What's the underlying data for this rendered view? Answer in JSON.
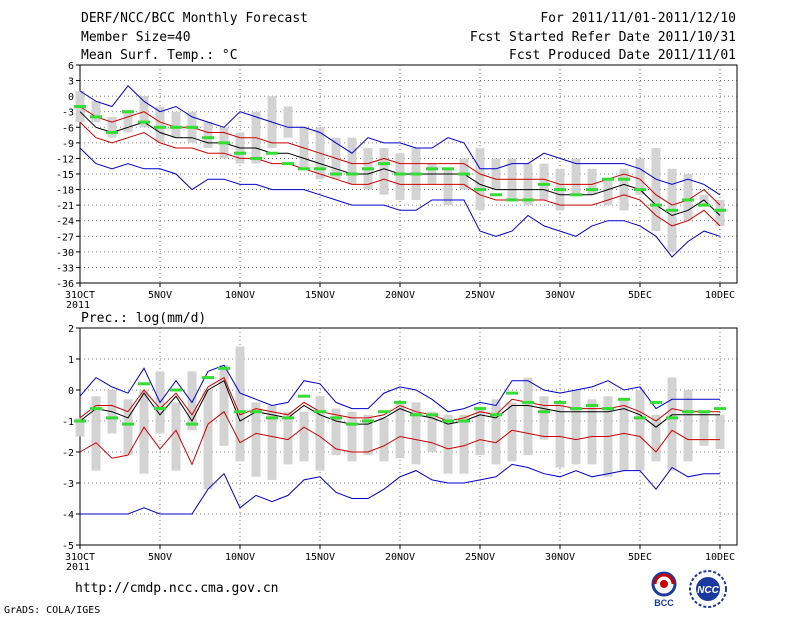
{
  "header": {
    "title": "DERF/NCC/BCC Monthly Forecast",
    "member_size": "Member Size=40",
    "period": "For 2011/11/01-2011/12/10",
    "started": "Fcst Started Refer Date 2011/10/31",
    "produced": "Fcst Produced Date 2011/11/01"
  },
  "footer": {
    "url": "http://cmdp.ncc.cma.gov.cn",
    "grads": "GrADS: COLA/IGES",
    "logo_bcc": "BCC",
    "logo_ncc": "NCC"
  },
  "colors": {
    "ensemble_mean": "#000000",
    "inner_band": "#cc0000",
    "outer_band": "#0000cc",
    "box": "#d3d3d3",
    "marker": "#33dd33",
    "grid": "#555555"
  },
  "chart_data": [
    {
      "type": "line",
      "title": "Mean Surf. Temp.: °C",
      "xlabel": "",
      "ylabel": "",
      "x_tick_labels": [
        "31OCT",
        "5NOV",
        "10NOV",
        "15NOV",
        "20NOV",
        "25NOV",
        "30NOV",
        "5DEC",
        "10DEC"
      ],
      "x_year_label": "2011",
      "ylim": [
        -36,
        6
      ],
      "y_ticks": [
        6,
        3,
        0,
        -3,
        -6,
        -9,
        -12,
        -15,
        -18,
        -21,
        -24,
        -27,
        -30,
        -33,
        -36
      ],
      "box_bottoms": [
        -5,
        -5,
        -8,
        -7,
        -6,
        -9,
        -8,
        -9,
        -10,
        -12,
        -13,
        -13,
        -10,
        -8,
        -14,
        -16,
        -16,
        -17,
        -18,
        -19,
        -20,
        -20,
        -17,
        -21,
        -18,
        -22,
        -18,
        -20,
        -21,
        -20,
        -22,
        -19,
        -19,
        -21,
        -22,
        -19,
        -26,
        -30,
        -24,
        -21,
        -25
      ],
      "box_tops": [
        1,
        -1,
        -4,
        -3,
        0,
        -2,
        -3,
        -3,
        -5,
        -6,
        -7,
        -3,
        0,
        -2,
        -6,
        -6,
        -8,
        -8,
        -10,
        -10,
        -11,
        -10,
        -13,
        -14,
        -12,
        -10,
        -12,
        -12,
        -13,
        -13,
        -14,
        -12,
        -14,
        -16,
        -14,
        -12,
        -10,
        -14,
        -15,
        -19,
        -20
      ],
      "markers": [
        -2,
        -4,
        -7,
        -3,
        -5,
        -6,
        -6,
        -6,
        -8,
        -9,
        -11,
        -12,
        -11,
        -13,
        -14,
        -14,
        -15,
        -15,
        -14,
        -13,
        -15,
        -15,
        -14,
        -14,
        -15,
        -18,
        -19,
        -20,
        -20,
        -17,
        -18,
        -19,
        -18,
        -16,
        -16,
        -18,
        -21,
        -22,
        -20,
        -21,
        -22
      ],
      "series": [
        {
          "name": "ensemble mean",
          "values": [
            -3,
            -6,
            -7,
            -6,
            -5,
            -7,
            -8,
            -8,
            -9,
            -9,
            -10,
            -10,
            -11,
            -11,
            -12,
            -13,
            -14,
            -15,
            -15,
            -14,
            -15,
            -15,
            -15,
            -15,
            -15,
            -17,
            -18,
            -18,
            -18,
            -18,
            -19,
            -19,
            -19,
            -18,
            -17,
            -18,
            -21,
            -23,
            -22,
            -20,
            -23
          ]
        },
        {
          "name": "upper inner band",
          "values": [
            -2,
            -4,
            -5,
            -4,
            -3,
            -5,
            -6,
            -6,
            -7,
            -7,
            -8,
            -8,
            -9,
            -9,
            -10,
            -11,
            -12,
            -13,
            -13,
            -12,
            -13,
            -13,
            -13,
            -13,
            -13,
            -15,
            -16,
            -16,
            -16,
            -16,
            -17,
            -17,
            -17,
            -16,
            -15,
            -16,
            -19,
            -21,
            -20,
            -18,
            -21
          ]
        },
        {
          "name": "lower inner band",
          "values": [
            -5,
            -8,
            -9,
            -8,
            -7,
            -9,
            -10,
            -10,
            -11,
            -11,
            -12,
            -12,
            -13,
            -13,
            -14,
            -15,
            -16,
            -17,
            -17,
            -16,
            -17,
            -17,
            -17,
            -17,
            -17,
            -19,
            -20,
            -20,
            -20,
            -20,
            -21,
            -21,
            -21,
            -20,
            -19,
            -20,
            -23,
            -25,
            -24,
            -22,
            -25
          ]
        },
        {
          "name": "max",
          "values": [
            1,
            -1,
            -2,
            2,
            -1,
            -3,
            -2,
            -4,
            -5,
            -6,
            -3,
            -4,
            -5,
            -6,
            -6,
            -7,
            -9,
            -11,
            -8,
            -9,
            -9,
            -10,
            -10,
            -8,
            -9,
            -14,
            -14,
            -13,
            -13,
            -11,
            -12,
            -13,
            -13,
            -13,
            -13,
            -14,
            -16,
            -17,
            -16,
            -17,
            -19
          ]
        },
        {
          "name": "min",
          "values": [
            -10,
            -13,
            -14,
            -13,
            -14,
            -14,
            -15,
            -18,
            -16,
            -16,
            -17,
            -17,
            -18,
            -18,
            -18,
            -19,
            -20,
            -21,
            -21,
            -21,
            -22,
            -22,
            -20,
            -20,
            -20,
            -26,
            -27,
            -26,
            -23,
            -25,
            -26,
            -27,
            -25,
            -24,
            -24,
            -25,
            -27,
            -31,
            -28,
            -26,
            -27
          ]
        }
      ]
    },
    {
      "type": "line",
      "title": "Prec.: log(mm/d)",
      "xlabel": "",
      "ylabel": "",
      "x_tick_labels": [
        "31OCT",
        "5NOV",
        "10NOV",
        "15NOV",
        "20NOV",
        "25NOV",
        "30NOV",
        "5DEC",
        "10DEC"
      ],
      "x_year_label": "2011",
      "ylim": [
        -5,
        2
      ],
      "y_ticks": [
        2,
        1,
        0,
        -1,
        -2,
        -3,
        -4,
        -5
      ],
      "box_bottoms": [
        -1.5,
        -2.6,
        -1.4,
        -2.1,
        -2.7,
        -1.4,
        -2.6,
        -1.3,
        -3.2,
        -1.8,
        -2.3,
        -2.8,
        -2.9,
        -2.4,
        -2.3,
        -2.6,
        -2.1,
        -2.3,
        -2.1,
        -2.3,
        -2.2,
        -2.4,
        -2.0,
        -2.7,
        -2.7,
        -2.1,
        -2.4,
        -2.3,
        -2.1,
        -1.6,
        -2.5,
        -2.4,
        -2.4,
        -2.8,
        -2.6,
        -2.6,
        -2.3,
        -2.6,
        -2.3,
        -1.8,
        -1.9
      ],
      "box_tops": [
        -0.9,
        -0.2,
        0.0,
        -0.3,
        0.0,
        0.6,
        -0.4,
        0.6,
        0.0,
        0.8,
        1.4,
        -0.4,
        -0.5,
        -0.7,
        -0.7,
        -0.2,
        -0.6,
        -0.7,
        -0.8,
        -0.9,
        -0.4,
        -0.4,
        -0.7,
        -0.8,
        -0.8,
        -0.6,
        -0.3,
        -0.4,
        0.4,
        -0.2,
        -0.4,
        0.0,
        -0.3,
        -0.2,
        -0.3,
        0.0,
        -0.8,
        0.4,
        0.0,
        -0.7,
        -0.8
      ],
      "markers": [
        -1.0,
        -0.6,
        -0.9,
        -1.1,
        0.2,
        -0.6,
        0.0,
        -1.1,
        0.4,
        0.7,
        -0.7,
        -0.7,
        -0.9,
        -0.9,
        -0.2,
        -0.7,
        -0.9,
        -1.1,
        -1.0,
        -0.7,
        -0.4,
        -0.8,
        -0.8,
        -1.0,
        -1.0,
        -0.6,
        -0.8,
        -0.1,
        -0.4,
        -0.7,
        -0.4,
        -0.6,
        -0.5,
        -0.6,
        -0.3,
        -0.9,
        -0.4,
        -0.9,
        -0.7,
        -0.7,
        -0.6
      ],
      "series": [
        {
          "name": "ensemble mean",
          "values": [
            -1.0,
            -0.6,
            -0.7,
            -0.9,
            -0.1,
            -0.8,
            -0.2,
            -1.0,
            0.0,
            0.3,
            -1.0,
            -0.7,
            -0.8,
            -0.9,
            -0.5,
            -0.8,
            -1.0,
            -1.1,
            -1.1,
            -0.9,
            -0.6,
            -0.8,
            -0.9,
            -1.1,
            -1.0,
            -0.8,
            -0.9,
            -0.5,
            -0.5,
            -0.6,
            -0.7,
            -0.7,
            -0.7,
            -0.7,
            -0.6,
            -0.8,
            -1.2,
            -0.8,
            -0.8,
            -0.8,
            -0.8
          ]
        },
        {
          "name": "upper inner band",
          "values": [
            -0.9,
            -0.5,
            -0.5,
            -0.7,
            0.0,
            -0.6,
            -0.1,
            -0.8,
            0.1,
            0.4,
            -0.8,
            -0.6,
            -0.7,
            -0.8,
            -0.4,
            -0.7,
            -0.8,
            -0.9,
            -0.9,
            -0.8,
            -0.5,
            -0.7,
            -0.8,
            -1.0,
            -0.9,
            -0.7,
            -0.8,
            -0.3,
            -0.4,
            -0.5,
            -0.5,
            -0.6,
            -0.6,
            -0.6,
            -0.5,
            -0.7,
            -1.0,
            -0.6,
            -0.7,
            -0.7,
            -0.7
          ]
        },
        {
          "name": "lower inner band",
          "values": [
            -2.0,
            -1.7,
            -2.2,
            -2.1,
            -1.2,
            -1.9,
            -1.3,
            -2.4,
            -1.1,
            -0.7,
            -1.7,
            -1.4,
            -1.5,
            -1.6,
            -1.2,
            -1.5,
            -1.9,
            -2.0,
            -2.0,
            -1.8,
            -1.5,
            -1.6,
            -1.7,
            -1.9,
            -1.8,
            -1.6,
            -1.7,
            -1.3,
            -1.4,
            -1.5,
            -1.5,
            -1.6,
            -1.5,
            -1.5,
            -1.4,
            -1.5,
            -2.0,
            -1.3,
            -1.6,
            -1.6,
            -1.6
          ]
        },
        {
          "name": "max",
          "values": [
            -0.2,
            0.4,
            0.1,
            -0.1,
            0.7,
            -0.4,
            0.3,
            -0.4,
            0.6,
            0.8,
            -0.1,
            -0.3,
            -0.5,
            -0.4,
            0.3,
            0.2,
            -0.4,
            -0.6,
            -0.6,
            -0.1,
            0.1,
            0.0,
            -0.3,
            -0.7,
            -0.6,
            -0.4,
            -0.5,
            0.3,
            0.3,
            0.0,
            -0.1,
            0.0,
            0.1,
            0.3,
            0.0,
            0.1,
            -0.6,
            -0.3,
            -0.3,
            -0.3,
            -0.3
          ]
        },
        {
          "name": "min",
          "values": [
            -4.0,
            -4.0,
            -4.0,
            -4.0,
            -3.8,
            -4.0,
            -4.0,
            -4.0,
            -3.2,
            -2.7,
            -3.8,
            -3.4,
            -3.6,
            -3.4,
            -2.9,
            -2.8,
            -3.3,
            -3.5,
            -3.5,
            -3.2,
            -2.8,
            -2.6,
            -2.9,
            -3.0,
            -3.0,
            -2.9,
            -2.8,
            -2.4,
            -2.5,
            -2.7,
            -2.8,
            -2.6,
            -2.8,
            -2.7,
            -2.6,
            -2.6,
            -3.2,
            -2.5,
            -2.8,
            -2.7,
            -2.7
          ]
        }
      ]
    }
  ]
}
